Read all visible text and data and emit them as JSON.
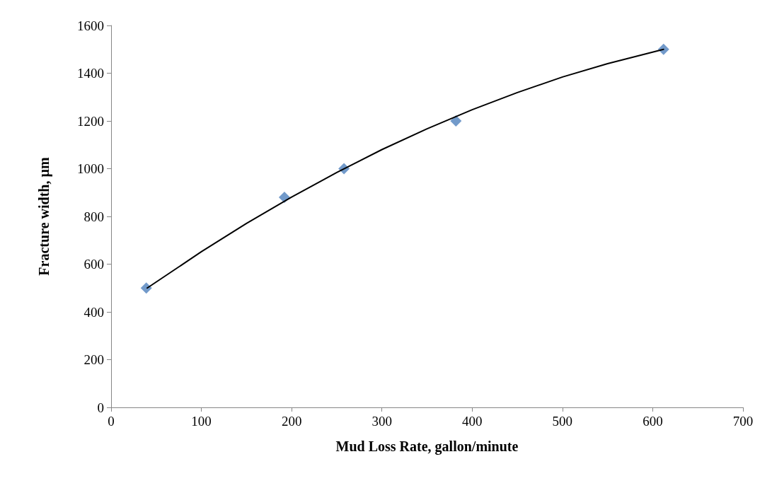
{
  "chart_data": {
    "type": "scatter",
    "xlabel": "Mud Loss Rate, gallon/minute",
    "ylabel": "Fracture width, µm",
    "xlim": [
      0,
      700
    ],
    "xticks": [
      0,
      100,
      200,
      300,
      400,
      500,
      600,
      700
    ],
    "ylim": [
      0,
      1600
    ],
    "yticks": [
      0,
      200,
      400,
      600,
      800,
      1000,
      1200,
      1400,
      1600
    ],
    "grid": false,
    "marker": "diamond",
    "series": [
      {
        "color": "#4f81bd",
        "x": [
          39,
          192,
          258,
          382,
          612
        ],
        "values": [
          500,
          880,
          1000,
          1200,
          1500
        ]
      },
      {
        "type": "line",
        "color": "#000000",
        "marker": "none",
        "line_style": "solid",
        "x": [
          40,
          100,
          150,
          200,
          250,
          300,
          350,
          400,
          450,
          500,
          550,
          612
        ],
        "values": [
          500,
          652,
          771,
          881,
          984,
          1080,
          1167,
          1247,
          1319,
          1384,
          1440,
          1500
        ]
      }
    ]
  }
}
